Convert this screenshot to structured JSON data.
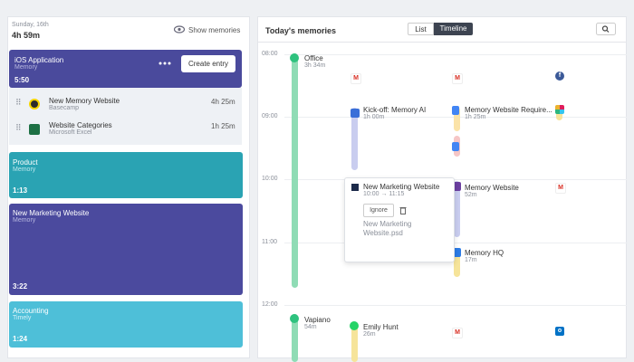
{
  "left": {
    "date": "Sunday, 16th",
    "total": "4h 59m",
    "show_memories": "Show memories",
    "active": {
      "title": "iOS Application",
      "subtitle": "Memory",
      "time": "5:50",
      "button": "Create entry",
      "items": [
        {
          "title": "New Memory Website",
          "app": "Basecamp",
          "duration": "4h 25m"
        },
        {
          "title": "Website Categories",
          "app": "Microsoft Excel",
          "duration": "1h 25m"
        }
      ]
    },
    "projects": [
      {
        "title": "Product",
        "subtitle": "Memory",
        "time": "1:13"
      },
      {
        "title": "New Marketing Website",
        "subtitle": "Memory",
        "time": "3:22"
      },
      {
        "title": "Accounting",
        "subtitle": "Timely",
        "time": "1:24"
      }
    ]
  },
  "right": {
    "title": "Today's memories",
    "tabs": [
      "List",
      "Timeline"
    ],
    "hours": [
      "08:00",
      "09:00",
      "10:00",
      "11:00",
      "12:00"
    ],
    "entries": [
      {
        "title": "Office",
        "duration": "3h 34m"
      },
      {
        "title": "Kick-off: Memory AI",
        "duration": "1h 00m"
      },
      {
        "title": "Memory Website Require...",
        "duration": "1h 25m"
      },
      {
        "title": "Memory Website",
        "duration": "52m"
      },
      {
        "title": "Memory HQ",
        "duration": "17m"
      },
      {
        "title": "Vapiano",
        "duration": "54m"
      },
      {
        "title": "Emily Hunt",
        "duration": "26m"
      }
    ],
    "popup": {
      "title": "New Marketing Website",
      "range": "10:00 → 11:15",
      "ignore": "Ignore",
      "file": "New Marketing Website.psd"
    }
  }
}
